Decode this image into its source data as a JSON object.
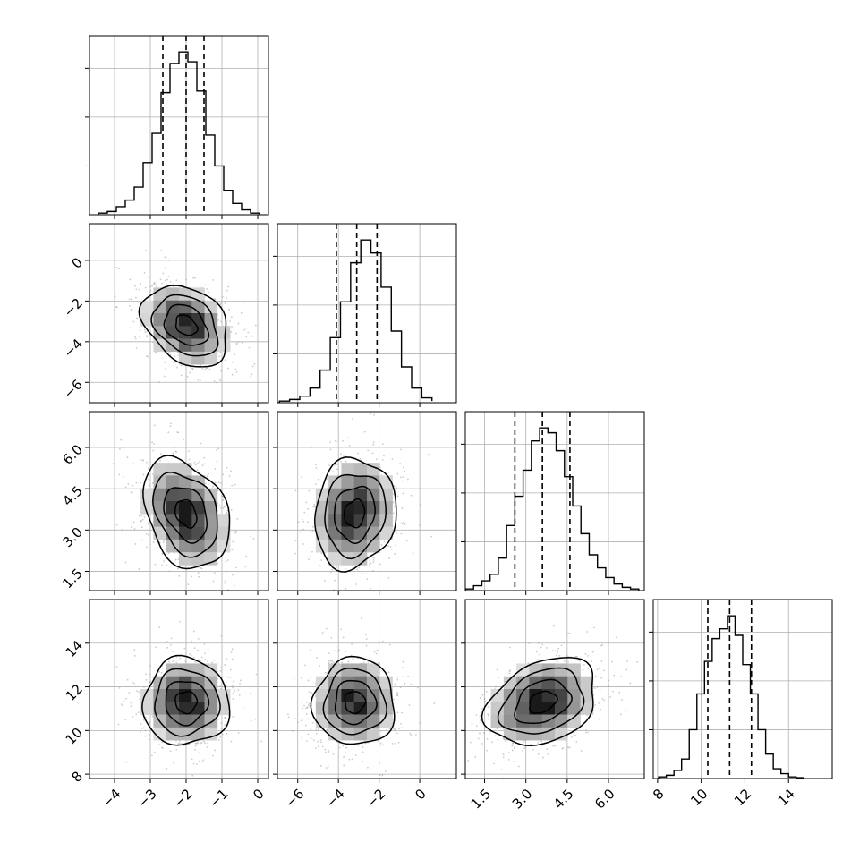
{
  "chart_data": {
    "type": "corner",
    "n_params": 4,
    "parameters": [
      {
        "range": [
          -4.7,
          0.3
        ],
        "mean": -2.0,
        "sd": 0.6,
        "quantiles_16_50_84": [
          -2.65,
          -2.0,
          -1.5
        ],
        "ticks": [
          -4,
          -3,
          -2,
          -1,
          0
        ],
        "tick_labels": [
          "−4",
          "−3",
          "−2",
          "−1",
          "0"
        ],
        "hist": {
          "edges": [
            -4.45,
            -4.2,
            -3.95,
            -3.7,
            -3.45,
            -3.2,
            -2.95,
            -2.7,
            -2.45,
            -2.2,
            -1.95,
            -1.7,
            -1.45,
            -1.2,
            -0.95,
            -0.7,
            -0.45,
            -0.2,
            0.05
          ],
          "heights": [
            0.01,
            0.02,
            0.05,
            0.09,
            0.17,
            0.32,
            0.5,
            0.75,
            0.93,
            1.0,
            0.94,
            0.76,
            0.49,
            0.3,
            0.15,
            0.07,
            0.03,
            0.01
          ]
        }
      },
      {
        "range": [
          -7.0,
          1.8
        ],
        "mean": -3.2,
        "sd": 1.0,
        "quantiles_16_50_84": [
          -4.1,
          -3.1,
          -2.1
        ],
        "ticks": [
          -6,
          -4,
          -2,
          0
        ],
        "tick_labels": [
          "−6",
          "−4",
          "−2",
          "0"
        ],
        "hist": {
          "edges": [
            -6.9,
            -6.4,
            -5.9,
            -5.4,
            -4.9,
            -4.4,
            -3.9,
            -3.4,
            -2.9,
            -2.4,
            -1.9,
            -1.4,
            -0.9,
            -0.4,
            0.1,
            0.6
          ],
          "heights": [
            0.01,
            0.02,
            0.04,
            0.09,
            0.2,
            0.4,
            0.62,
            0.86,
            1.0,
            0.92,
            0.71,
            0.44,
            0.22,
            0.09,
            0.03,
            0.01
          ]
        }
      },
      {
        "range": [
          0.8,
          7.3
        ],
        "mean": 3.6,
        "sd": 1.0,
        "quantiles_16_50_84": [
          2.6,
          3.6,
          4.6
        ],
        "ticks": [
          1.5,
          3.0,
          4.5,
          6.0
        ],
        "tick_labels": [
          "1.5",
          "3.0",
          "4.5",
          "6.0"
        ],
        "hist": {
          "edges": [
            0.8,
            1.1,
            1.4,
            1.7,
            2.0,
            2.3,
            2.6,
            2.9,
            3.2,
            3.5,
            3.8,
            4.1,
            4.4,
            4.7,
            5.0,
            5.3,
            5.6,
            5.9,
            6.2,
            6.5,
            6.8,
            7.1
          ],
          "heights": [
            0.01,
            0.03,
            0.06,
            0.1,
            0.2,
            0.4,
            0.58,
            0.74,
            0.92,
            1.0,
            0.97,
            0.86,
            0.7,
            0.52,
            0.35,
            0.22,
            0.14,
            0.08,
            0.04,
            0.02,
            0.01
          ]
        }
      },
      {
        "range": [
          7.8,
          16.0
        ],
        "mean": 11.3,
        "sd": 1.0,
        "quantiles_16_50_84": [
          10.3,
          11.3,
          12.3
        ],
        "ticks": [
          8,
          10,
          12,
          14
        ],
        "tick_labels": [
          "8",
          "10",
          "12",
          "14"
        ],
        "hist": {
          "edges": [
            8.05,
            8.4,
            8.75,
            9.1,
            9.45,
            9.8,
            10.15,
            10.5,
            10.85,
            11.2,
            11.55,
            11.9,
            12.25,
            12.6,
            12.95,
            13.3,
            13.65,
            14.0,
            14.35,
            14.7
          ],
          "heights": [
            0.01,
            0.02,
            0.05,
            0.12,
            0.3,
            0.52,
            0.72,
            0.86,
            0.92,
            1.0,
            0.88,
            0.7,
            0.52,
            0.3,
            0.15,
            0.06,
            0.03,
            0.01,
            0.005
          ]
        }
      }
    ],
    "correlations": [
      [
        1.0,
        -0.3,
        -0.3,
        0.0
      ],
      [
        -0.3,
        1.0,
        0.1,
        0.0
      ],
      [
        -0.3,
        0.1,
        1.0,
        0.3
      ],
      [
        0.0,
        0.0,
        0.3,
        1.0
      ]
    ],
    "contour_levels_sigma": [
      0.5,
      1.0,
      1.5,
      2.0
    ],
    "scatter_points_per_panel": 700,
    "grid": true,
    "colors": {
      "lines": "#000000",
      "grid": "#b0b0b0",
      "scatter": "#a0a0a0"
    }
  }
}
